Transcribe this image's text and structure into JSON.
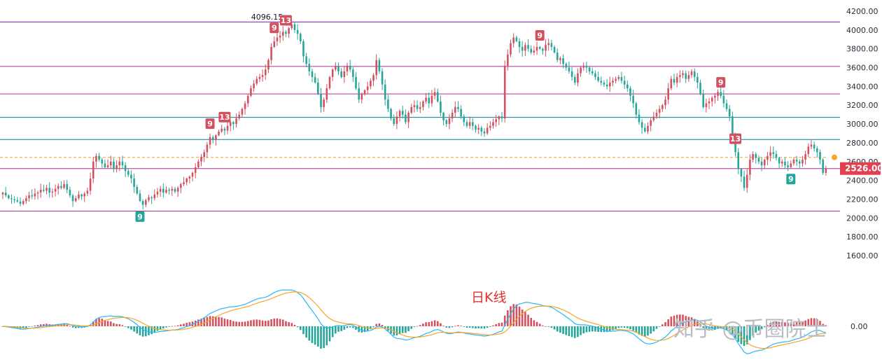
{
  "chart_data": {
    "type": "candlestick",
    "title": "日K线",
    "watermark": "知乎 @币圈院士",
    "y_axis": {
      "ylim": [
        1600,
        4200
      ],
      "ticks": [
        "4200.00",
        "4000.00",
        "3800.00",
        "3600.00",
        "3400.00",
        "3200.00",
        "3000.00",
        "2800.00",
        "2600.00",
        "2400.00",
        "2200.00",
        "2000.00",
        "1800.00",
        "1600.00"
      ],
      "tick_values": [
        4200,
        4000,
        3800,
        3600,
        3400,
        3200,
        3000,
        2800,
        2600,
        2400,
        2200,
        2000,
        1800,
        1600
      ]
    },
    "current_price": {
      "label": "2526.00",
      "value": 2526,
      "color": "#e0404f"
    },
    "peak_annotation": {
      "label": "4096.15",
      "value": 4096.15
    },
    "reference_dashed": {
      "value": 2645,
      "color": "#f5a623"
    },
    "horizontal_levels": [
      {
        "value": 4085,
        "color": "#7b1fa2"
      },
      {
        "value": 3612,
        "color": "#b0318e"
      },
      {
        "value": 3320,
        "color": "#b0318e"
      },
      {
        "value": 3070,
        "color": "#00838f"
      },
      {
        "value": 2835,
        "color": "#00838f"
      },
      {
        "value": 2526,
        "color": "#b0318e"
      },
      {
        "value": 2073,
        "color": "#b0318e"
      }
    ],
    "colors": {
      "up": "#d3505f",
      "down": "#26a69a",
      "macd_line": "#29b6f6",
      "signal_line": "#f5a623"
    },
    "td_marks": [
      {
        "label": "9",
        "index": 47,
        "type": "down"
      },
      {
        "label": "9",
        "index": 71,
        "type": "up"
      },
      {
        "label": "13",
        "index": 76,
        "type": "up"
      },
      {
        "label": "9",
        "index": 93,
        "type": "up"
      },
      {
        "label": "13",
        "index": 97,
        "type": "up"
      },
      {
        "label": "9",
        "index": 184,
        "type": "up"
      },
      {
        "label": "9",
        "index": 246,
        "type": "up"
      },
      {
        "label": "13",
        "index": 251,
        "type": "up"
      },
      {
        "label": "9",
        "index": 270,
        "type": "down"
      }
    ],
    "close_series": [
      2270,
      2240,
      2210,
      2200,
      2190,
      2175,
      2150,
      2180,
      2210,
      2240,
      2230,
      2260,
      2270,
      2300,
      2290,
      2320,
      2270,
      2280,
      2310,
      2340,
      2320,
      2360,
      2300,
      2240,
      2180,
      2210,
      2250,
      2230,
      2260,
      2290,
      2420,
      2600,
      2660,
      2620,
      2580,
      2540,
      2560,
      2600,
      2520,
      2560,
      2600,
      2560,
      2500,
      2460,
      2420,
      2330,
      2260,
      2180,
      2140,
      2190,
      2220,
      2210,
      2250,
      2280,
      2310,
      2270,
      2300,
      2290,
      2310,
      2280,
      2320,
      2360,
      2380,
      2420,
      2440,
      2480,
      2540,
      2600,
      2650,
      2700,
      2780,
      2860,
      2830,
      2880,
      2920,
      2950,
      2930,
      2980,
      3020,
      3000,
      3060,
      3100,
      3160,
      3220,
      3300,
      3380,
      3430,
      3480,
      3500,
      3520,
      3580,
      3680,
      3820,
      3880,
      3920,
      3940,
      3980,
      3960,
      4020,
      4060,
      4000,
      3960,
      3880,
      3720,
      3640,
      3560,
      3500,
      3440,
      3320,
      3180,
      3260,
      3380,
      3500,
      3580,
      3620,
      3560,
      3500,
      3560,
      3620,
      3580,
      3500,
      3380,
      3260,
      3320,
      3360,
      3400,
      3460,
      3520,
      3680,
      3560,
      3420,
      3260,
      3160,
      3060,
      3000,
      3080,
      3140,
      3100,
      3020,
      3120,
      3180,
      3200,
      3160,
      3180,
      3240,
      3280,
      3220,
      3300,
      3340,
      3240,
      3120,
      3040,
      3000,
      3060,
      3120,
      3180,
      3160,
      3080,
      3020,
      2980,
      3020,
      2980,
      2940,
      2960,
      2920,
      2900,
      2960,
      2980,
      3020,
      3050,
      3080,
      3060,
      3620,
      3740,
      3860,
      3920,
      3880,
      3820,
      3780,
      3840,
      3800,
      3760,
      3780,
      3820,
      3800,
      3780,
      3840,
      3860,
      3820,
      3760,
      3680,
      3700,
      3640,
      3600,
      3560,
      3500,
      3440,
      3540,
      3600,
      3620,
      3600,
      3560,
      3540,
      3500,
      3460,
      3440,
      3420,
      3400,
      3440,
      3460,
      3480,
      3500,
      3460,
      3420,
      3380,
      3300,
      3220,
      3100,
      3020,
      2960,
      2920,
      2980,
      3040,
      3080,
      3120,
      3160,
      3200,
      3260,
      3380,
      3480,
      3440,
      3500,
      3520,
      3540,
      3480,
      3520,
      3560,
      3500,
      3440,
      3320,
      3180,
      3220,
      3240,
      3280,
      3300,
      3340,
      3300,
      3220,
      3160,
      3080,
      2880,
      2700,
      2520,
      2440,
      2320,
      2460,
      2620,
      2680,
      2640,
      2600,
      2560,
      2620,
      2660,
      2700,
      2680,
      2640,
      2580,
      2600,
      2560,
      2540,
      2580,
      2620,
      2600,
      2580,
      2620,
      2680,
      2760,
      2780,
      2740,
      2700,
      2620,
      2480,
      2526
    ]
  }
}
